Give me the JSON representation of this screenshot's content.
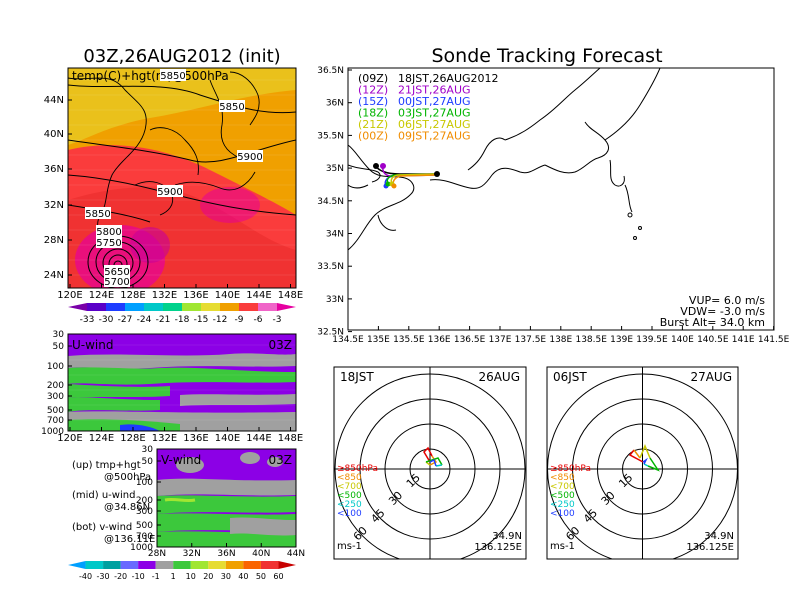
{
  "page_title": "Sonde Tracking Forecast",
  "left_title": "03Z,26AUG2012 (init)",
  "temp_panel": {
    "overlay_label": "temp(C)+hgt(m)@500hPa",
    "lat_ticks": [
      "44N",
      "40N",
      "36N",
      "32N",
      "28N",
      "24N"
    ],
    "lon_ticks": [
      "120E",
      "124E",
      "128E",
      "132E",
      "136E",
      "140E",
      "144E",
      "148E"
    ],
    "contour_labels": [
      "5850",
      "5850",
      "5900",
      "5900",
      "5850",
      "5800",
      "5750",
      "5650",
      "5700"
    ],
    "colorbar_labels": [
      "-33",
      "-30",
      "-27",
      "-24",
      "-21",
      "-18",
      "-15",
      "-12",
      "-9",
      "-6",
      "-3"
    ],
    "colorbar_colors": [
      "#7a00a8",
      "#5a00c8",
      "#1e3cff",
      "#00a0ff",
      "#00c8c8",
      "#00d28c",
      "#a0e632",
      "#e6dc32",
      "#f0a000",
      "#fa3c3c",
      "#f064c8",
      "#e600a0"
    ]
  },
  "uwind_panel": {
    "label": "U-wind",
    "time": "03Z",
    "p_ticks": [
      "30",
      "50",
      "100",
      "200",
      "300",
      "500",
      "700",
      "1000"
    ],
    "lon_ticks": [
      "120E",
      "124E",
      "128E",
      "132E",
      "136E",
      "140E",
      "144E",
      "148E"
    ]
  },
  "vwind_panel": {
    "label": "V-wind",
    "time": "03Z",
    "p_ticks": [
      "30",
      "50",
      "100",
      "200",
      "300",
      "500",
      "700",
      "1000"
    ],
    "lat_ticks": [
      "28N",
      "32N",
      "36N",
      "40N",
      "44N"
    ]
  },
  "legend_text": {
    "up": "(up) tmp+hgt",
    "up2": "@500hPa",
    "mid": "(mid) u-wind",
    "mid2": "@34.86N",
    "bot": "(bot) v-wind",
    "bot2": "@136.11E"
  },
  "wind_colorbar": {
    "labels": [
      "-40",
      "-30",
      "-20",
      "-10",
      "-1",
      "1",
      "10",
      "20",
      "30",
      "40",
      "50",
      "60"
    ],
    "colors": [
      "#00a0ff",
      "#00c8c8",
      "#00a0a0",
      "#6a6aff",
      "#8c00e6",
      "#a0a0a0",
      "#3cc83c",
      "#a0e632",
      "#e6dc32",
      "#f0a000",
      "#fa6400",
      "#f03232",
      "#c80000"
    ]
  },
  "track_panel": {
    "lat_ticks": [
      "36.5N",
      "36N",
      "35.5N",
      "35N",
      "34.5N",
      "34N",
      "33.5N",
      "33N",
      "32.5N"
    ],
    "lon_ticks": [
      "134.5E",
      "135E",
      "135.5E",
      "136E",
      "136.5E",
      "137E",
      "137.5E",
      "138E",
      "138.5E",
      "139E",
      "139.5E",
      "140E",
      "140.5E",
      "141E",
      "141.5E"
    ],
    "legend": [
      {
        "code": "(09Z)",
        "time": "18JST,26AUG2012",
        "color": "#000000"
      },
      {
        "code": "(12Z)",
        "time": "21JST,26AUG",
        "color": "#a000c8"
      },
      {
        "code": "(15Z)",
        "time": "00JST,27AUG",
        "color": "#1e3cff"
      },
      {
        "code": "(18Z)",
        "time": "03JST,27AUG",
        "color": "#00b400"
      },
      {
        "code": "(21Z)",
        "time": "06JST,27AUG",
        "color": "#c8c800"
      },
      {
        "code": "(00Z)",
        "time": "09JST,27AUG",
        "color": "#f08c00"
      }
    ],
    "vup": "VUP=  6.0  m/s",
    "vdw": "VDW= -3.0  m/s",
    "burst": "Burst Alt= 34.0  km"
  },
  "hodo_left": {
    "time": "18JST",
    "date": "26AUG",
    "ring_labels": [
      "15",
      "30",
      "45",
      "60"
    ],
    "levels": [
      {
        "label": "≥850hPa",
        "color": "#e60000"
      },
      {
        "label": "<850",
        "color": "#f08c00"
      },
      {
        "label": "<700",
        "color": "#c8c800"
      },
      {
        "label": "<500",
        "color": "#00b400"
      },
      {
        "label": "<250",
        "color": "#00c8c8"
      },
      {
        "label": "<100",
        "color": "#1e3cff"
      }
    ],
    "unit": "ms-1",
    "lat": "34.9N",
    "lon": "136.125E"
  },
  "hodo_right": {
    "time": "06JST",
    "date": "27AUG",
    "ring_labels": [
      "15",
      "30",
      "45",
      "60"
    ],
    "levels": [
      {
        "label": "≥850hPa",
        "color": "#e60000"
      },
      {
        "label": "<850",
        "color": "#f08c00"
      },
      {
        "label": "<700",
        "color": "#c8c800"
      },
      {
        "label": "<500",
        "color": "#00b400"
      },
      {
        "label": "<250",
        "color": "#00c8c8"
      },
      {
        "label": "<100",
        "color": "#1e3cff"
      }
    ],
    "unit": "ms-1",
    "lat": "34.9N",
    "lon": "136.125E"
  },
  "chart_data": [
    {
      "type": "heatmap",
      "title": "03Z,26AUG2012 (init)",
      "variable": "temp(C)+hgt(m)@500hPa",
      "xlim": [
        120,
        150
      ],
      "ylim": [
        22,
        47
      ],
      "contour_levels": [
        5650,
        5700,
        5750,
        5800,
        5850,
        5900
      ]
    },
    {
      "type": "heatmap",
      "title": "U-wind",
      "time": "03Z",
      "xlim": [
        120,
        150
      ],
      "p_levels": [
        30,
        50,
        100,
        200,
        300,
        500,
        700,
        1000
      ]
    },
    {
      "type": "heatmap",
      "title": "V-wind",
      "time": "03Z",
      "xlim": [
        28,
        44
      ],
      "p_levels": [
        30,
        50,
        100,
        200,
        300,
        500,
        700,
        1000
      ]
    },
    {
      "type": "line",
      "title": "Sonde Tracking Forecast",
      "xlim": [
        134.5,
        141.5
      ],
      "ylim": [
        32.5,
        36.5
      ],
      "launch": {
        "lon": 136.11,
        "lat": 34.86
      }
    },
    {
      "type": "line",
      "title": "hodograph 18JST 26AUG",
      "rings": [
        15,
        30,
        45,
        60
      ]
    },
    {
      "type": "line",
      "title": "hodograph 06JST 27AUG",
      "rings": [
        15,
        30,
        45,
        60
      ]
    }
  ]
}
